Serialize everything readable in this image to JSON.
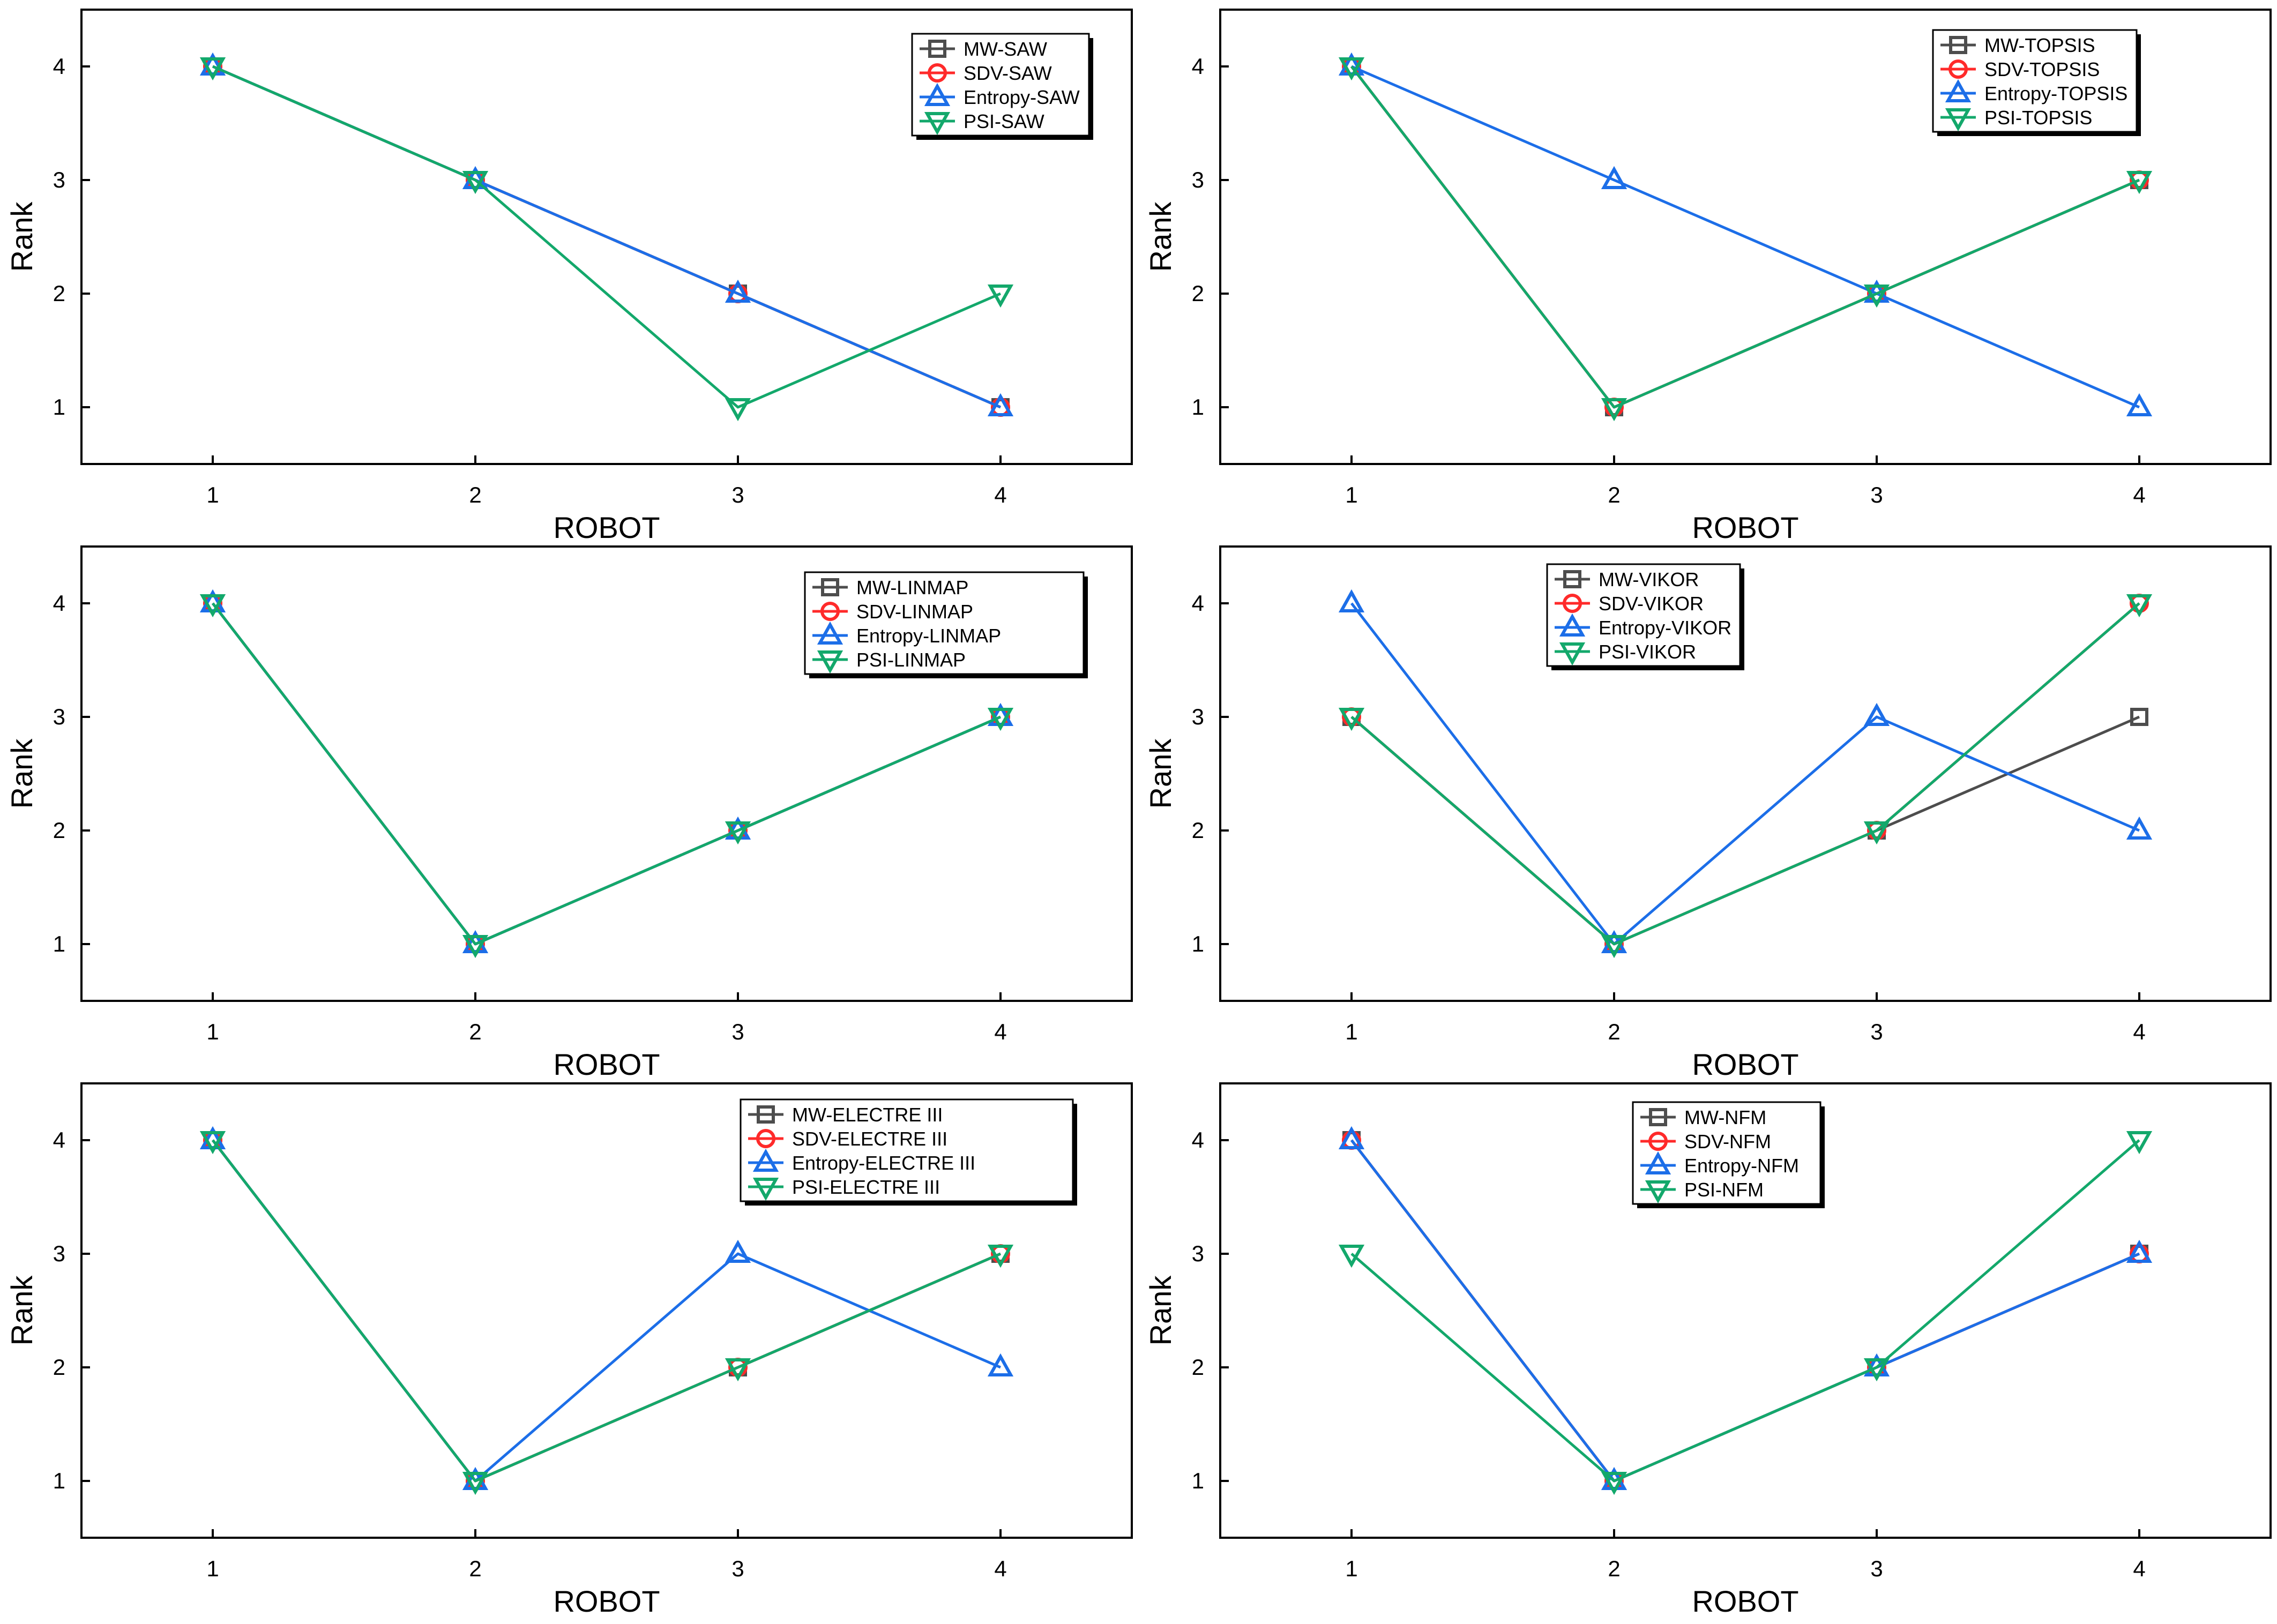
{
  "figure": {
    "name": "rank-comparison-figure"
  },
  "series_styles": {
    "colors": [
      "#4d4d4d",
      "#ff2a2a",
      "#1c6ee8",
      "#13a86b"
    ],
    "markers": [
      "square",
      "circle",
      "triangle-up",
      "triangle-down"
    ]
  },
  "chart_data": [
    {
      "type": "line",
      "method": "SAW",
      "xlabel": "ROBOT",
      "ylabel": "Rank",
      "x": [
        1,
        2,
        3,
        4
      ],
      "xticks": [
        "1",
        "2",
        "3",
        "4"
      ],
      "yticks": [
        "1",
        "2",
        "3",
        "4"
      ],
      "xlim": [
        0.5,
        4.5
      ],
      "ylim": [
        0.5,
        4.5
      ],
      "legend_position": "top-right",
      "series": [
        {
          "name": "MW-SAW",
          "values": [
            4,
            3,
            2,
            1
          ]
        },
        {
          "name": "SDV-SAW",
          "values": [
            4,
            3,
            2,
            1
          ]
        },
        {
          "name": "Entropy-SAW",
          "values": [
            4,
            3,
            2,
            1
          ]
        },
        {
          "name": "PSI-SAW",
          "values": [
            4,
            3,
            1,
            2
          ]
        }
      ]
    },
    {
      "type": "line",
      "method": "TOPSIS",
      "xlabel": "ROBOT",
      "ylabel": "Rank",
      "x": [
        1,
        2,
        3,
        4
      ],
      "xticks": [
        "1",
        "2",
        "3",
        "4"
      ],
      "yticks": [
        "1",
        "2",
        "3",
        "4"
      ],
      "xlim": [
        0.5,
        4.5
      ],
      "ylim": [
        0.5,
        4.5
      ],
      "legend_position": "top-right",
      "series": [
        {
          "name": "MW-TOPSIS",
          "values": [
            4,
            1,
            2,
            3
          ]
        },
        {
          "name": "SDV-TOPSIS",
          "values": [
            4,
            1,
            2,
            3
          ]
        },
        {
          "name": "Entropy-TOPSIS",
          "values": [
            4,
            3,
            2,
            1
          ]
        },
        {
          "name": "PSI-TOPSIS",
          "values": [
            4,
            1,
            2,
            3
          ]
        }
      ]
    },
    {
      "type": "line",
      "method": "LINMAP",
      "xlabel": "ROBOT",
      "ylabel": "Rank",
      "x": [
        1,
        2,
        3,
        4
      ],
      "xticks": [
        "1",
        "2",
        "3",
        "4"
      ],
      "yticks": [
        "1",
        "2",
        "3",
        "4"
      ],
      "xlim": [
        0.5,
        4.5
      ],
      "ylim": [
        0.5,
        4.5
      ],
      "legend_position": "top-right",
      "series": [
        {
          "name": "MW-LINMAP",
          "values": [
            4,
            1,
            2,
            3
          ]
        },
        {
          "name": "SDV-LINMAP",
          "values": [
            4,
            1,
            2,
            3
          ]
        },
        {
          "name": "Entropy-LINMAP",
          "values": [
            4,
            1,
            2,
            3
          ]
        },
        {
          "name": "PSI-LINMAP",
          "values": [
            4,
            1,
            2,
            3
          ]
        }
      ]
    },
    {
      "type": "line",
      "method": "VIKOR",
      "xlabel": "ROBOT",
      "ylabel": "Rank",
      "x": [
        1,
        2,
        3,
        4
      ],
      "xticks": [
        "1",
        "2",
        "3",
        "4"
      ],
      "yticks": [
        "1",
        "2",
        "3",
        "4"
      ],
      "xlim": [
        0.5,
        4.5
      ],
      "ylim": [
        0.5,
        4.5
      ],
      "legend_position": "top-left",
      "series": [
        {
          "name": "MW-VIKOR",
          "values": [
            3,
            1,
            2,
            3
          ]
        },
        {
          "name": "SDV-VIKOR",
          "values": [
            3,
            1,
            2,
            4
          ]
        },
        {
          "name": "Entropy-VIKOR",
          "values": [
            4,
            1,
            3,
            2
          ]
        },
        {
          "name": "PSI-VIKOR",
          "values": [
            3,
            1,
            2,
            4
          ]
        }
      ]
    },
    {
      "type": "line",
      "method": "ELECTRE III",
      "xlabel": "ROBOT",
      "ylabel": "Rank",
      "x": [
        1,
        2,
        3,
        4
      ],
      "xticks": [
        "1",
        "2",
        "3",
        "4"
      ],
      "yticks": [
        "1",
        "2",
        "3",
        "4"
      ],
      "xlim": [
        0.5,
        4.5
      ],
      "ylim": [
        0.5,
        4.5
      ],
      "legend_position": "top-right",
      "series": [
        {
          "name": "MW-ELECTRE III",
          "values": [
            4,
            1,
            2,
            3
          ]
        },
        {
          "name": "SDV-ELECTRE III",
          "values": [
            4,
            1,
            2,
            3
          ]
        },
        {
          "name": "Entropy-ELECTRE III",
          "values": [
            4,
            1,
            3,
            2
          ]
        },
        {
          "name": "PSI-ELECTRE III",
          "values": [
            4,
            1,
            2,
            3
          ]
        }
      ]
    },
    {
      "type": "line",
      "method": "NFM",
      "xlabel": "ROBOT",
      "ylabel": "Rank",
      "x": [
        1,
        2,
        3,
        4
      ],
      "xticks": [
        "1",
        "2",
        "3",
        "4"
      ],
      "yticks": [
        "1",
        "2",
        "3",
        "4"
      ],
      "xlim": [
        0.5,
        4.5
      ],
      "ylim": [
        0.5,
        4.5
      ],
      "legend_position": "top-left",
      "series": [
        {
          "name": "MW-NFM",
          "values": [
            4,
            1,
            2,
            3
          ]
        },
        {
          "name": "SDV-NFM",
          "values": [
            4,
            1,
            2,
            3
          ]
        },
        {
          "name": "Entropy-NFM",
          "values": [
            4,
            1,
            2,
            3
          ]
        },
        {
          "name": "PSI-NFM",
          "values": [
            3,
            1,
            2,
            4
          ]
        }
      ]
    }
  ]
}
